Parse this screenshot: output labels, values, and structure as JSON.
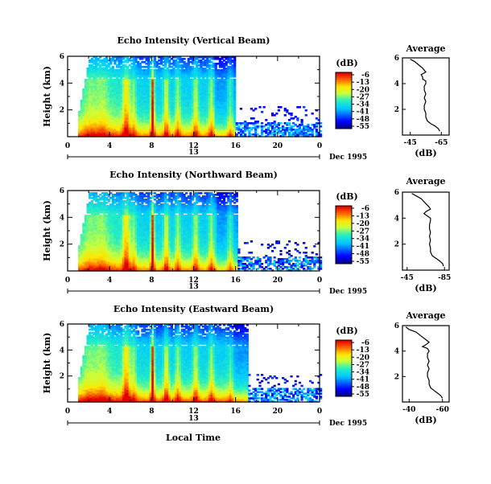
{
  "figure": {
    "x_axis_label": "Local Time",
    "date_label": "Dec 1995"
  },
  "chart_data": [
    {
      "type": "heatmap",
      "title": "Echo Intensity (Vertical Beam)",
      "ylabel": "Height (km)",
      "xticks": [
        "0",
        "4",
        "8",
        "12",
        "16",
        "20",
        "0"
      ],
      "day_ticks": [
        "13"
      ],
      "yticks": [
        "2",
        "4",
        "6"
      ],
      "xlim": [
        0,
        24
      ],
      "ylim": [
        0,
        6
      ],
      "colorbar": {
        "label": "(dB)",
        "ticks": [
          "-6",
          "-13",
          "-20",
          "-27",
          "-34",
          "-41",
          "-48",
          "-55"
        ]
      },
      "top_height_km": 5.9,
      "cloud_top_km": 4.3,
      "cloud_end_hour": 15.8,
      "base_intensity_dB": -10,
      "profile": {
        "title": "Average",
        "xlabel": "(dB)",
        "xticks": [
          "-45",
          "-65"
        ],
        "xlim": [
          -40,
          -70
        ],
        "yticks": [
          "2",
          "4",
          "6"
        ],
        "ylim": [
          0,
          6
        ],
        "x": [
          -64,
          -63,
          -61,
          -58,
          -56,
          -55,
          -55,
          -54,
          -54,
          -55,
          -54,
          -55,
          -54,
          -54,
          -55,
          -55,
          -53,
          -53,
          -52,
          -55,
          -53,
          -50,
          -48,
          -45
        ],
        "y": [
          0.3,
          0.5,
          0.7,
          0.9,
          1.1,
          1.4,
          1.7,
          2.0,
          2.3,
          2.6,
          2.9,
          3.2,
          3.5,
          3.8,
          4.0,
          4.2,
          4.35,
          4.5,
          4.7,
          4.9,
          5.2,
          5.5,
          5.7,
          5.9
        ]
      }
    },
    {
      "type": "heatmap",
      "title": "Echo Intensity (Northward Beam)",
      "ylabel": "Height (km)",
      "xticks": [
        "0",
        "4",
        "8",
        "12",
        "16",
        "20",
        "0"
      ],
      "day_ticks": [
        "13"
      ],
      "yticks": [
        "2",
        "4",
        "6"
      ],
      "xlim": [
        0,
        24
      ],
      "ylim": [
        0,
        6
      ],
      "colorbar": {
        "label": "(dB)",
        "ticks": [
          "-6",
          "-13",
          "-20",
          "-27",
          "-34",
          "-41",
          "-48",
          "-55"
        ]
      },
      "top_height_km": 5.9,
      "cloud_top_km": 4.2,
      "cloud_end_hour": 16.0,
      "base_intensity_dB": -12,
      "profile": {
        "title": "Average",
        "xlabel": "(dB)",
        "xticks": [
          "-45",
          "-85"
        ],
        "xlim": [
          -40,
          -90
        ],
        "yticks": [
          "2",
          "4",
          "6"
        ],
        "ylim": [
          0,
          6
        ],
        "x": [
          -84,
          -83,
          -80,
          -76,
          -72,
          -70,
          -70,
          -69,
          -70,
          -69,
          -70,
          -69,
          -69,
          -70,
          -70,
          -66,
          -63,
          -65,
          -70,
          -68,
          -64,
          -60,
          -55,
          -50
        ],
        "y": [
          0.3,
          0.5,
          0.7,
          0.9,
          1.1,
          1.4,
          1.7,
          2.0,
          2.3,
          2.6,
          2.9,
          3.2,
          3.5,
          3.8,
          4.0,
          4.2,
          4.35,
          4.5,
          4.7,
          4.9,
          5.2,
          5.5,
          5.7,
          5.9
        ]
      }
    },
    {
      "type": "heatmap",
      "title": "Echo Intensity (Eastward Beam)",
      "ylabel": "Height (km)",
      "xticks": [
        "0",
        "4",
        "8",
        "12",
        "16",
        "20",
        "0"
      ],
      "day_ticks": [
        "13"
      ],
      "yticks": [
        "2",
        "4",
        "6"
      ],
      "xlim": [
        0,
        24
      ],
      "ylim": [
        0,
        6
      ],
      "colorbar": {
        "label": "(dB)",
        "ticks": [
          "-6",
          "-13",
          "-20",
          "-27",
          "-34",
          "-41",
          "-48",
          "-55"
        ]
      },
      "top_height_km": 5.9,
      "cloud_top_km": 4.3,
      "cloud_end_hour": 17.0,
      "base_intensity_dB": -6,
      "profile": {
        "title": "Average",
        "xlabel": "(dB)",
        "xticks": [
          "-40",
          "-60"
        ],
        "xlim": [
          -36,
          -64
        ],
        "yticks": [
          "2",
          "4",
          "6"
        ],
        "ylim": [
          0,
          6
        ],
        "x": [
          -60,
          -59,
          -57,
          -55,
          -53,
          -52,
          -52,
          -51,
          -51,
          -52,
          -51,
          -52,
          -51,
          -51,
          -52,
          -51,
          -48,
          -50,
          -52,
          -50,
          -47,
          -44,
          -40,
          -38
        ],
        "y": [
          0.3,
          0.5,
          0.7,
          0.9,
          1.1,
          1.4,
          1.7,
          2.0,
          2.3,
          2.6,
          2.9,
          3.2,
          3.5,
          3.8,
          4.0,
          4.2,
          4.35,
          4.5,
          4.7,
          4.9,
          5.2,
          5.5,
          5.7,
          5.9
        ]
      }
    }
  ]
}
